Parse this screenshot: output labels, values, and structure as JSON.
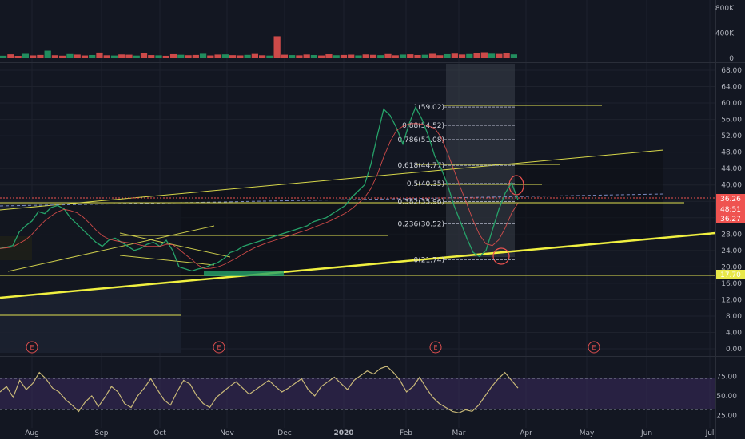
{
  "chart_data": [
    {
      "type": "bar",
      "panel": "volume",
      "y_ticks": [
        "800K",
        "400K",
        "0"
      ],
      "ylim": [
        0,
        800000
      ],
      "values": [
        40000,
        62000,
        38000,
        70000,
        45000,
        52000,
        120000,
        48000,
        41000,
        66000,
        58000,
        44000,
        51000,
        90000,
        47000,
        43000,
        60000,
        56000,
        42000,
        78000,
        50000,
        46000,
        39000,
        64000,
        55000,
        48000,
        52000,
        71000,
        44000,
        58000,
        61000,
        49000,
        45000,
        53000,
        68000,
        47000,
        42000,
        350000,
        56000,
        50000,
        46000,
        59000,
        51000,
        44000,
        63000,
        48000,
        52000,
        57000,
        45000,
        60000,
        54000,
        49000,
        66000,
        47000,
        58000,
        62000,
        51000,
        55000,
        70000,
        48000,
        64000,
        73000,
        59000,
        66000,
        80000,
        95000,
        72000,
        68000,
        85000,
        61000
      ]
    },
    {
      "type": "line",
      "panel": "price",
      "y_ticks": [
        "68.00",
        "64.00",
        "60.00",
        "56.00",
        "52.00",
        "48.00",
        "44.00",
        "40.00",
        "36.00",
        "32.00",
        "28.00",
        "24.00",
        "20.00",
        "16.00",
        "12.00",
        "8.00",
        "4.00",
        "0.00"
      ],
      "ylim": [
        0,
        68
      ],
      "x_ticks": [
        "Aug",
        "Sep",
        "Oct",
        "Nov",
        "Dec",
        "2020",
        "Feb",
        "Mar",
        "Apr",
        "May",
        "Jun",
        "Jul"
      ],
      "series": [
        {
          "values": [
            24.5,
            24.8,
            25.2,
            28.5,
            30.0,
            31.2,
            33.5,
            33.0,
            34.5,
            35.0,
            34.2,
            32.0,
            30.5,
            29.0,
            27.5,
            26.0,
            25.0,
            26.5,
            27.0,
            26.0,
            25.0,
            24.0,
            24.5,
            25.5,
            26.0,
            25.0,
            26.5,
            24.0,
            20.0,
            19.5,
            19.0,
            19.5,
            19.8,
            20.5,
            21.0,
            22.0,
            23.5,
            24.0,
            25.0,
            25.5,
            26.0,
            26.5,
            27.0,
            27.5,
            28.0,
            28.5,
            29.0,
            29.5,
            30.0,
            31.0,
            31.5,
            32.0,
            33.0,
            34.0,
            35.0,
            37.0,
            38.5,
            40.0,
            45.0,
            52.0,
            58.5,
            57.0,
            54.0,
            50.0,
            55.0,
            59.0,
            56.0,
            52.0,
            47.0,
            44.0,
            40.0,
            35.0,
            31.0,
            27.0,
            23.5,
            22.5,
            24.0,
            29.0,
            34.0,
            38.0,
            40.5,
            36.3
          ]
        }
      ],
      "annotations": {
        "fibonacci": [
          "1(59.02)",
          "0.88(54.52)",
          "0.786(51.08)",
          "0.618(44.77)",
          "0.5(40.35)",
          "0.382(35.96)",
          "0.236(30.52)",
          "0(21.74)"
        ],
        "price_tags": [
          {
            "text": "36.26",
            "color": "#ef5350"
          },
          {
            "text": "48:51",
            "color": "#ef5350"
          },
          {
            "text": "36.27",
            "color": "#ef5350"
          },
          {
            "text": "17.70",
            "color": "#e8e84a"
          }
        ],
        "earnings_marker": "E"
      }
    },
    {
      "type": "line",
      "panel": "rsi",
      "y_ticks": [
        "75.00",
        "50.00",
        "25.00"
      ],
      "ylim": [
        15,
        95
      ],
      "series": [
        {
          "values": [
            55,
            62,
            48,
            70,
            58,
            66,
            80,
            72,
            60,
            55,
            45,
            38,
            30,
            42,
            50,
            36,
            48,
            62,
            55,
            40,
            35,
            50,
            60,
            72,
            58,
            45,
            38,
            55,
            70,
            65,
            50,
            40,
            35,
            48,
            55,
            62,
            68,
            60,
            52,
            58,
            64,
            70,
            62,
            55,
            60,
            66,
            72,
            58,
            50,
            62,
            68,
            74,
            66,
            58,
            70,
            76,
            82,
            78,
            85,
            88,
            80,
            70,
            55,
            62,
            74,
            60,
            48,
            40,
            35,
            30,
            28,
            32,
            30,
            38,
            50,
            62,
            72,
            80,
            70,
            60
          ]
        }
      ]
    }
  ]
}
